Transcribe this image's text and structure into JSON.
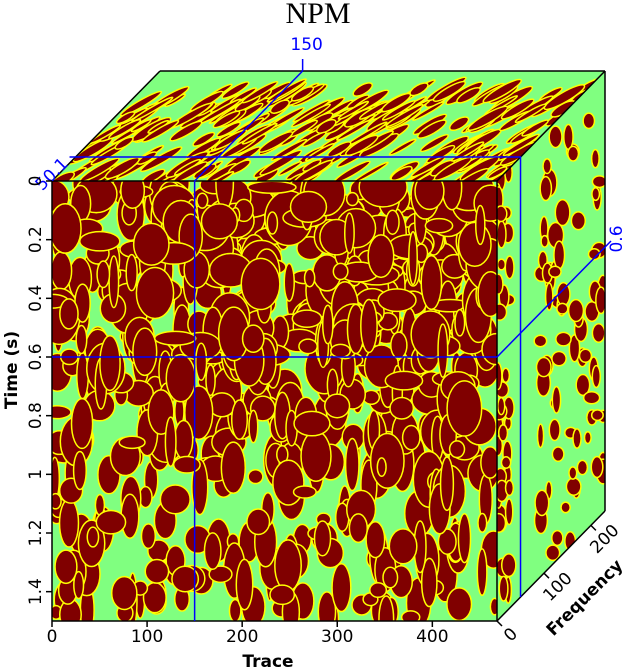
{
  "chart_data": {
    "type": "cube",
    "title": "NPM",
    "xlabel": "Trace",
    "ylabel": "Time (s)",
    "zlabel": "Frequency",
    "xlim": [
      0,
      468
    ],
    "xticks": [
      0,
      100,
      200,
      300,
      400
    ],
    "ylim": [
      0,
      1.5
    ],
    "yticks": [
      0,
      0.2,
      0.4,
      0.6,
      0.8,
      1,
      1.2,
      1.4
    ],
    "zlim": [
      0,
      230
    ],
    "zticks": [
      0,
      100,
      200
    ],
    "slices": {
      "x": 150,
      "y": 0.6,
      "z": 50.1
    },
    "face_color": "#80ff80",
    "texture_color": "#800000",
    "edge_color": "#ffff00",
    "slice_color": "#0000ff"
  }
}
